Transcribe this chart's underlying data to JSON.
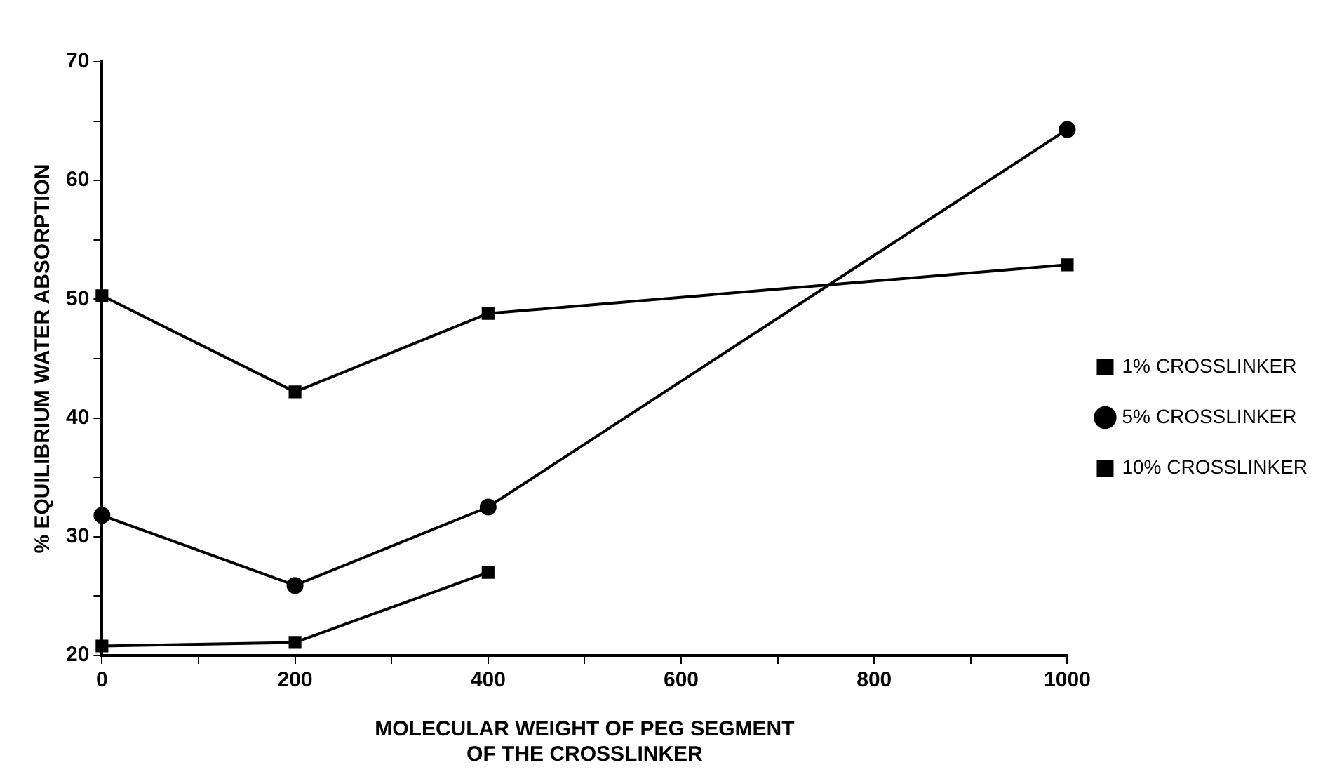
{
  "chart_data": {
    "type": "line",
    "xlabel": "MOLECULAR WEIGHT OF PEG SEGMENT\nOF THE CROSSLINKER",
    "ylabel": "% EQUILIBRIUM WATER ABSORPTION",
    "x": [
      0,
      200,
      400,
      1000
    ],
    "series": [
      {
        "name": "1% CROSSLINKER",
        "color": "#000000",
        "marker": "square",
        "values": [
          50.3,
          42.2,
          48.8,
          52.9
        ]
      },
      {
        "name": "5% CROSSLINKER",
        "color": "#000000",
        "marker": "circle",
        "values": [
          31.8,
          25.9,
          32.5,
          64.3
        ]
      },
      {
        "name": "10% CROSSLINKER",
        "color": "#000000",
        "marker": "square",
        "values": [
          20.8,
          21.1,
          27.0,
          null
        ]
      }
    ],
    "xlim": [
      0,
      1000
    ],
    "xticks": [
      0,
      {
        "value": 100,
        "label": null
      },
      200,
      {
        "value": 300,
        "label": null
      },
      400,
      {
        "value": 500,
        "label": null
      },
      600,
      {
        "value": 700,
        "label": null
      },
      800,
      {
        "value": 900,
        "label": null
      },
      1000
    ],
    "ylim": [
      20,
      70
    ],
    "yticks": [
      20,
      {
        "value": 25,
        "label": null
      },
      30,
      {
        "value": 35,
        "label": null
      },
      40,
      {
        "value": 45,
        "label": null
      },
      50,
      {
        "value": 55,
        "label": null
      },
      60,
      {
        "value": 65,
        "label": null
      },
      70
    ],
    "grid": false,
    "legend": "right",
    "line_style": "solid"
  }
}
